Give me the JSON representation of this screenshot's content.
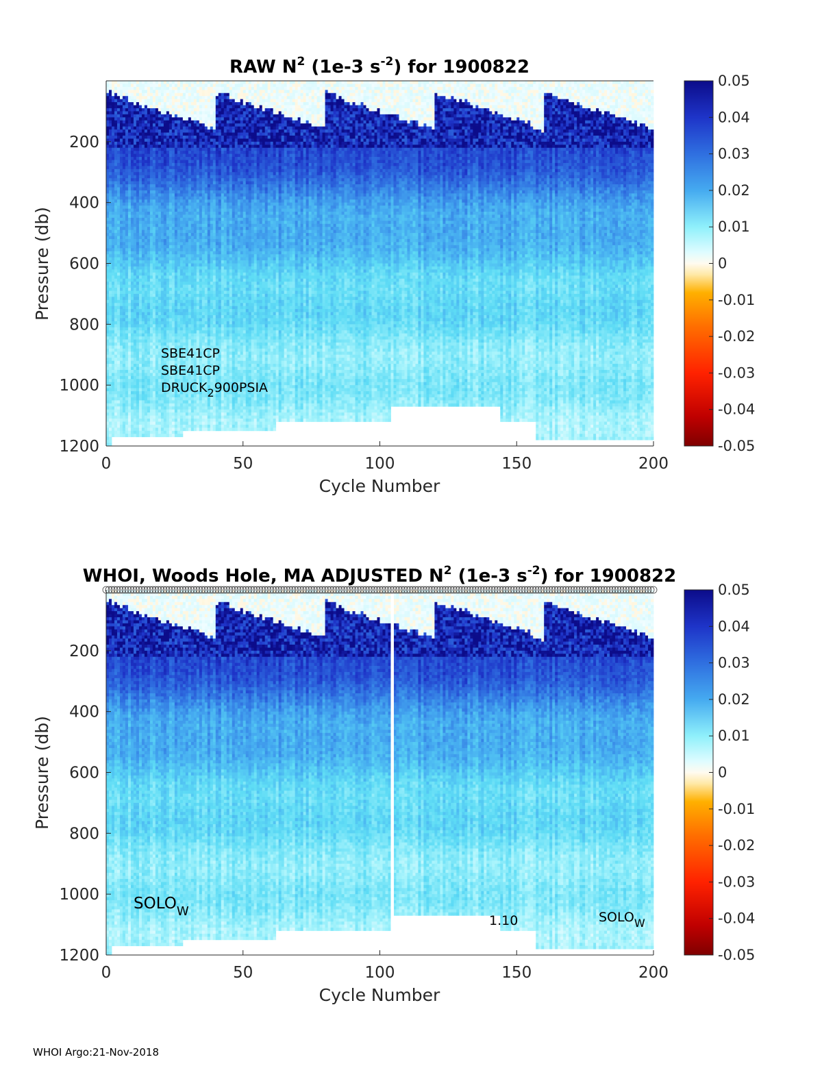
{
  "footer": "WHOI Argo:21-Nov-2018",
  "colormap": {
    "neg": [
      "#7f0000",
      "#bf0000",
      "#ff2200",
      "#ff7000",
      "#ffb000",
      "#ffe9a8",
      "#fff8e6"
    ],
    "pos": [
      "#f2fdff",
      "#a8f4fc",
      "#5edcf5",
      "#45aaf0",
      "#2f6fe0",
      "#1e34c8",
      "#0c0c8a"
    ]
  },
  "chart_data": [
    {
      "type": "heatmap",
      "title_parts": [
        "RAW N",
        "2",
        " (1e-3 s",
        "-2",
        ") for 1900822"
      ],
      "xlabel": "Cycle Number",
      "ylabel": "Pressure (db)",
      "xlim": [
        0,
        200
      ],
      "ylim": [
        1200,
        0
      ],
      "xticks": [
        "0",
        "50",
        "100",
        "150",
        "200"
      ],
      "xtick_values": [
        0,
        50,
        100,
        150,
        200
      ],
      "yticks": [
        "200",
        "400",
        "600",
        "800",
        "1000",
        "1200"
      ],
      "ytick_values": [
        200,
        400,
        600,
        800,
        1000,
        1200
      ],
      "colorbar": {
        "clim": [
          -0.05,
          0.05
        ],
        "ticks": [
          "0.05",
          "0.04",
          "0.03",
          "0.02",
          "0.01",
          "0",
          "-0.01",
          "-0.02",
          "-0.03",
          "-0.04",
          "-0.05"
        ],
        "tick_values": [
          0.05,
          0.04,
          0.03,
          0.02,
          0.01,
          0,
          -0.01,
          -0.02,
          -0.03,
          -0.04,
          -0.05
        ]
      },
      "annotations": {
        "sensor1": "SBE41CP",
        "sensor2": "SBE41CP",
        "sensor3_main": "DRUCK",
        "sensor3_sub": "2",
        "sensor3_rest": "900PSIA"
      },
      "gap_cycles": [],
      "bottom_pressure_profile": [
        {
          "cycles": [
            0,
            2
          ],
          "max_pressure": 1200
        },
        {
          "cycles": [
            2,
            28
          ],
          "max_pressure": 1165
        },
        {
          "cycles": [
            28,
            62
          ],
          "max_pressure": 1150
        },
        {
          "cycles": [
            62,
            104
          ],
          "max_pressure": 1120
        },
        {
          "cycles": [
            104,
            144
          ],
          "max_pressure": 1070
        },
        {
          "cycles": [
            144,
            157
          ],
          "max_pressure": 1120
        },
        {
          "cycles": [
            157,
            200
          ],
          "max_pressure": 1180
        }
      ]
    },
    {
      "type": "heatmap",
      "title_parts": [
        "WHOI, Woods Hole, MA  ADJUSTED N",
        "2",
        " (1e-3 s",
        "-2",
        ") for 1900822"
      ],
      "xlabel": "Cycle Number",
      "ylabel": "Pressure (db)",
      "xlim": [
        0,
        200
      ],
      "ylim": [
        1200,
        0
      ],
      "xticks": [
        "0",
        "50",
        "100",
        "150",
        "200"
      ],
      "xtick_values": [
        0,
        50,
        100,
        150,
        200
      ],
      "yticks": [
        "200",
        "400",
        "600",
        "800",
        "1000",
        "1200"
      ],
      "ytick_values": [
        200,
        400,
        600,
        800,
        1000,
        1200
      ],
      "colorbar": {
        "clim": [
          -0.05,
          0.05
        ],
        "ticks": [
          "0.05",
          "0.04",
          "0.03",
          "0.02",
          "0.01",
          "0",
          "-0.01",
          "-0.02",
          "-0.03",
          "-0.04",
          "-0.05"
        ],
        "tick_values": [
          0.05,
          0.04,
          0.03,
          0.02,
          0.01,
          0,
          -0.01,
          -0.02,
          -0.03,
          -0.04,
          -0.05
        ]
      },
      "annotations": {
        "solo_left_main": "SOLO",
        "solo_left_sub": "W",
        "version": "1.10",
        "solo_right_main": "SOLO",
        "solo_right_sub": "W"
      },
      "gap_cycles": [
        104
      ],
      "bottom_pressure_profile": [
        {
          "cycles": [
            0,
            2
          ],
          "max_pressure": 1200
        },
        {
          "cycles": [
            2,
            28
          ],
          "max_pressure": 1165
        },
        {
          "cycles": [
            28,
            62
          ],
          "max_pressure": 1150
        },
        {
          "cycles": [
            62,
            104
          ],
          "max_pressure": 1120
        },
        {
          "cycles": [
            104,
            144
          ],
          "max_pressure": 1070
        },
        {
          "cycles": [
            144,
            157
          ],
          "max_pressure": 1120
        },
        {
          "cycles": [
            157,
            200
          ],
          "max_pressure": 1180
        }
      ]
    }
  ]
}
